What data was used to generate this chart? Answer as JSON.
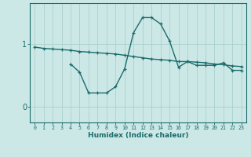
{
  "xlabel": "Humidex (Indice chaleur)",
  "bg_color": "#cce8e6",
  "grid_color": "#aacfcd",
  "line_color": "#1a6b6b",
  "yticks": [
    0,
    1
  ],
  "xlim": [
    -0.5,
    23.5
  ],
  "ylim": [
    -0.25,
    1.65
  ],
  "xtick_labels": [
    "0",
    "1",
    "2",
    "3",
    "4",
    "5",
    "6",
    "7",
    "8",
    "9",
    "10",
    "11",
    "12",
    "13",
    "14",
    "15",
    "16",
    "17",
    "18",
    "19",
    "20",
    "21",
    "22",
    "23"
  ],
  "line1_x": [
    0,
    1,
    2,
    3,
    4,
    5,
    6,
    7,
    8,
    9,
    10,
    11,
    12,
    13,
    14,
    15,
    16,
    17,
    18,
    19,
    20,
    21,
    22,
    23
  ],
  "line1_y": [
    0.95,
    0.93,
    0.92,
    0.91,
    0.9,
    0.88,
    0.87,
    0.86,
    0.85,
    0.84,
    0.82,
    0.8,
    0.78,
    0.76,
    0.75,
    0.74,
    0.72,
    0.72,
    0.71,
    0.7,
    0.68,
    0.67,
    0.65,
    0.64
  ],
  "line2_x": [
    4,
    5,
    6,
    7,
    8,
    9,
    10,
    11,
    12,
    13,
    14,
    15,
    16,
    17,
    18,
    19,
    20,
    21,
    22,
    23
  ],
  "line2_y": [
    0.68,
    0.55,
    0.22,
    0.22,
    0.22,
    0.32,
    0.6,
    1.18,
    1.42,
    1.42,
    1.32,
    1.05,
    0.63,
    0.72,
    0.66,
    0.66,
    0.66,
    0.7,
    0.58,
    0.58
  ]
}
